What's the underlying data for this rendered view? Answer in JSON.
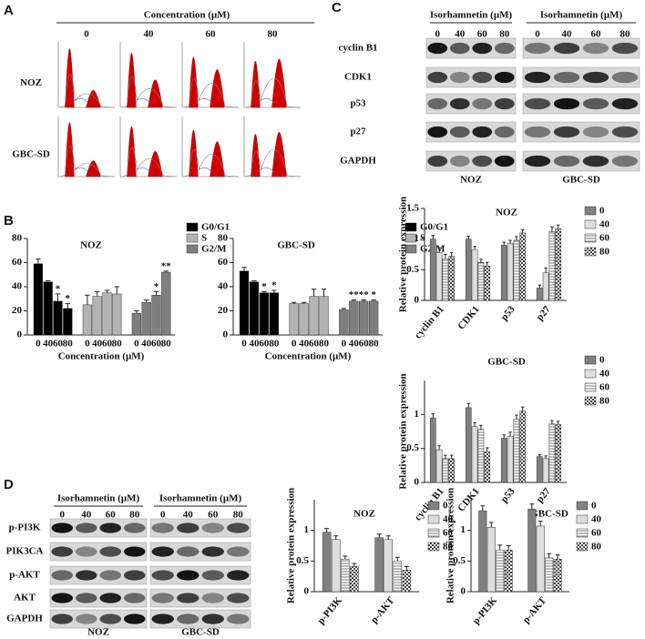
{
  "panels": {
    "A": {
      "label": "A",
      "header": "Concentration (μM)",
      "columns": [
        "0",
        "40",
        "60",
        "80"
      ],
      "rows": [
        "NOZ",
        "GBC-SD"
      ]
    },
    "B": {
      "label": "B"
    },
    "C": {
      "label": "C",
      "treatment": "Isorhamnetin (μM)",
      "concentrations": [
        "0",
        "40",
        "60",
        "80"
      ],
      "proteins": [
        "cyclin B1",
        "CDK1",
        "p53",
        "p27",
        "GAPDH"
      ],
      "cell_lines": [
        "NOZ",
        "GBC-SD"
      ]
    },
    "D": {
      "label": "D",
      "treatment": "Isorhamnetin (μM)",
      "concentrations": [
        "0",
        "40",
        "60",
        "80"
      ],
      "proteins": [
        "p-PI3K",
        "PIK3CA",
        "p-AKT",
        "AKT",
        "GAPDH"
      ],
      "cell_lines": [
        "NOZ",
        "GBC-SD"
      ]
    }
  },
  "chart_data": [
    {
      "type": "bar",
      "grouping": "series",
      "title": "NOZ",
      "xlabel": "Concentration (μM)",
      "categories": [
        "0",
        "40",
        "60",
        "80"
      ],
      "series": [
        {
          "name": "G0/G1",
          "color": "#000000",
          "values": [
            59,
            44,
            28,
            22
          ],
          "errors": [
            4,
            1,
            6,
            4
          ],
          "annotations": [
            null,
            null,
            "*",
            "*"
          ]
        },
        {
          "name": "S",
          "color": "#b3b3b3",
          "values": [
            25,
            32,
            35,
            34
          ],
          "errors": [
            8,
            4,
            2,
            6
          ],
          "annotations": [
            null,
            null,
            null,
            null
          ]
        },
        {
          "name": "G2/M",
          "color": "#7f7f7f",
          "values": [
            18,
            27,
            33,
            52
          ],
          "errors": [
            2,
            2,
            3,
            1
          ],
          "annotations": [
            null,
            null,
            "*",
            "**"
          ]
        }
      ],
      "ylim": [
        0,
        80
      ],
      "yticks": [
        0,
        20,
        40,
        60,
        80
      ]
    },
    {
      "type": "bar",
      "grouping": "series",
      "title": "GBC-SD",
      "xlabel": "Concentration (μM)",
      "categories": [
        "0",
        "40",
        "60",
        "80"
      ],
      "series": [
        {
          "name": "G0/G1",
          "color": "#000000",
          "values": [
            53,
            44,
            35,
            35
          ],
          "errors": [
            3,
            1,
            1,
            2
          ],
          "annotations": [
            null,
            null,
            "*",
            "*"
          ]
        },
        {
          "name": "S",
          "color": "#b3b3b3",
          "values": [
            26,
            26,
            32,
            32
          ],
          "errors": [
            1,
            1,
            6,
            6
          ],
          "annotations": [
            null,
            null,
            null,
            null
          ]
        },
        {
          "name": "G2/M",
          "color": "#7f7f7f",
          "values": [
            21,
            28,
            28,
            28
          ],
          "errors": [
            1,
            1,
            1,
            1
          ],
          "annotations": [
            null,
            "**",
            "**",
            "*"
          ]
        }
      ],
      "ylim": [
        0,
        80
      ],
      "yticks": [
        0,
        20,
        40,
        60,
        80
      ]
    },
    {
      "type": "bar",
      "grouping": "category",
      "title": "NOZ",
      "ylabel": "Relative protein expression",
      "categories": [
        "cyclin B1",
        "CDK1",
        "p53",
        "p27"
      ],
      "series": [
        {
          "name": "0",
          "color": "#808080",
          "values": [
            1.0,
            1.0,
            0.9,
            0.2
          ],
          "errors": [
            0.06,
            0.05,
            0.05,
            0.05
          ]
        },
        {
          "name": "40",
          "color": "#dddddd",
          "values": [
            0.78,
            0.83,
            0.93,
            0.45
          ],
          "errors": [
            0.08,
            0.05,
            0.05,
            0.08
          ]
        },
        {
          "name": "60",
          "color": "#ffffff",
          "pattern": "hlines",
          "values": [
            0.68,
            0.62,
            0.98,
            1.12
          ],
          "errors": [
            0.07,
            0.05,
            0.06,
            0.08
          ]
        },
        {
          "name": "80",
          "color": "#ffffff",
          "pattern": "checker",
          "values": [
            0.72,
            0.56,
            1.1,
            1.17
          ],
          "errors": [
            0.06,
            0.06,
            0.05,
            0.06
          ]
        }
      ],
      "ylim": [
        0,
        1.5
      ],
      "yticks": [
        0,
        0.5,
        1,
        1.5
      ]
    },
    {
      "type": "bar",
      "grouping": "category",
      "title": "GBC-SD",
      "ylabel": "Relative protein expression",
      "categories": [
        "cyclin B1",
        "CDK1",
        "p53",
        "p27"
      ],
      "series": [
        {
          "name": "0",
          "color": "#808080",
          "values": [
            0.95,
            1.1,
            0.65,
            0.38
          ],
          "errors": [
            0.06,
            0.06,
            0.05,
            0.03
          ]
        },
        {
          "name": "40",
          "color": "#dddddd",
          "values": [
            0.48,
            0.82,
            0.68,
            0.35
          ],
          "errors": [
            0.06,
            0.06,
            0.06,
            0.04
          ]
        },
        {
          "name": "60",
          "color": "#ffffff",
          "pattern": "hlines",
          "values": [
            0.35,
            0.78,
            0.93,
            0.86
          ],
          "errors": [
            0.05,
            0.06,
            0.06,
            0.05
          ]
        },
        {
          "name": "80",
          "color": "#ffffff",
          "pattern": "checker",
          "values": [
            0.35,
            0.45,
            1.05,
            0.85
          ],
          "errors": [
            0.05,
            0.06,
            0.06,
            0.05
          ]
        }
      ],
      "ylim": [
        0,
        1.5
      ],
      "yticks": [
        0,
        0.5,
        1
      ]
    },
    {
      "type": "bar",
      "grouping": "category",
      "title": "NOZ",
      "ylabel": "Relative protein expression",
      "categories": [
        "p-PI3K",
        "p-AKT"
      ],
      "series": [
        {
          "name": "0",
          "color": "#808080",
          "values": [
            0.97,
            0.88
          ],
          "errors": [
            0.06,
            0.06
          ]
        },
        {
          "name": "40",
          "color": "#dddddd",
          "values": [
            0.85,
            0.85
          ],
          "errors": [
            0.06,
            0.06
          ]
        },
        {
          "name": "60",
          "color": "#ffffff",
          "pattern": "hlines",
          "values": [
            0.53,
            0.5
          ],
          "errors": [
            0.05,
            0.06
          ]
        },
        {
          "name": "80",
          "color": "#ffffff",
          "pattern": "checker",
          "values": [
            0.41,
            0.35
          ],
          "errors": [
            0.05,
            0.06
          ]
        }
      ],
      "ylim": [
        0,
        1.5
      ],
      "yticks": [
        0,
        0.5,
        1
      ]
    },
    {
      "type": "bar",
      "grouping": "category",
      "title": "GBC-SD",
      "ylabel": "Relative protein expression",
      "categories": [
        "p-PI3K",
        "p-AKT"
      ],
      "series": [
        {
          "name": "0",
          "color": "#808080",
          "values": [
            1.32,
            1.35
          ],
          "errors": [
            0.08,
            0.08
          ]
        },
        {
          "name": "40",
          "color": "#dddddd",
          "values": [
            1.05,
            1.07
          ],
          "errors": [
            0.08,
            0.08
          ]
        },
        {
          "name": "60",
          "color": "#ffffff",
          "pattern": "hlines",
          "values": [
            0.68,
            0.55
          ],
          "errors": [
            0.08,
            0.07
          ]
        },
        {
          "name": "80",
          "color": "#ffffff",
          "pattern": "checker",
          "values": [
            0.68,
            0.53
          ],
          "errors": [
            0.07,
            0.07
          ]
        }
      ],
      "ylim": [
        0,
        1.5
      ],
      "yticks": [
        0,
        0.5,
        1
      ]
    }
  ]
}
